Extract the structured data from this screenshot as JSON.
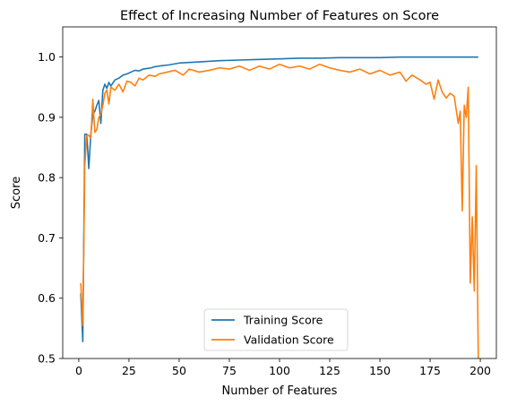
{
  "chart_data": {
    "type": "line",
    "title": "Effect of Increasing Number of Features on Score",
    "xlabel": "Number of Features",
    "ylabel": "Score",
    "xlim": [
      -8,
      208
    ],
    "ylim": [
      0.5,
      1.05
    ],
    "xticks": [
      0,
      25,
      50,
      75,
      100,
      125,
      150,
      175,
      200
    ],
    "yticks": [
      0.5,
      0.6,
      0.7,
      0.8,
      0.9,
      1.0
    ],
    "ytick_labels": [
      "0.5",
      "0.6",
      "0.7",
      "0.8",
      "0.9",
      "1.0"
    ],
    "grid": false,
    "legend_position": "bottom-center",
    "series": [
      {
        "name": "Training Score",
        "color": "#1f77b4",
        "points": [
          [
            1,
            0.608
          ],
          [
            2,
            0.528
          ],
          [
            3,
            0.872
          ],
          [
            4,
            0.872
          ],
          [
            5,
            0.815
          ],
          [
            6,
            0.872
          ],
          [
            7,
            0.905
          ],
          [
            8,
            0.91
          ],
          [
            9,
            0.92
          ],
          [
            10,
            0.928
          ],
          [
            11,
            0.89
          ],
          [
            12,
            0.945
          ],
          [
            13,
            0.955
          ],
          [
            14,
            0.948
          ],
          [
            15,
            0.958
          ],
          [
            16,
            0.952
          ],
          [
            18,
            0.962
          ],
          [
            20,
            0.965
          ],
          [
            22,
            0.97
          ],
          [
            24,
            0.972
          ],
          [
            26,
            0.975
          ],
          [
            28,
            0.978
          ],
          [
            30,
            0.977
          ],
          [
            32,
            0.98
          ],
          [
            34,
            0.981
          ],
          [
            36,
            0.982
          ],
          [
            38,
            0.984
          ],
          [
            40,
            0.985
          ],
          [
            45,
            0.987
          ],
          [
            50,
            0.99
          ],
          [
            55,
            0.991
          ],
          [
            60,
            0.992
          ],
          [
            70,
            0.994
          ],
          [
            80,
            0.995
          ],
          [
            90,
            0.996
          ],
          [
            100,
            0.997
          ],
          [
            110,
            0.998
          ],
          [
            120,
            0.998
          ],
          [
            130,
            0.999
          ],
          [
            140,
            0.999
          ],
          [
            150,
            0.999
          ],
          [
            160,
            1.0
          ],
          [
            170,
            1.0
          ],
          [
            180,
            1.0
          ],
          [
            190,
            1.0
          ],
          [
            199,
            1.0
          ]
        ]
      },
      {
        "name": "Validation Score",
        "color": "#ff7f0e",
        "points": [
          [
            1,
            0.625
          ],
          [
            2,
            0.555
          ],
          [
            3,
            0.82
          ],
          [
            4,
            0.87
          ],
          [
            5,
            0.87
          ],
          [
            6,
            0.865
          ],
          [
            7,
            0.93
          ],
          [
            8,
            0.875
          ],
          [
            9,
            0.88
          ],
          [
            10,
            0.9
          ],
          [
            11,
            0.905
          ],
          [
            12,
            0.92
          ],
          [
            13,
            0.94
          ],
          [
            14,
            0.945
          ],
          [
            15,
            0.922
          ],
          [
            16,
            0.95
          ],
          [
            18,
            0.945
          ],
          [
            20,
            0.955
          ],
          [
            22,
            0.942
          ],
          [
            24,
            0.96
          ],
          [
            26,
            0.958
          ],
          [
            28,
            0.952
          ],
          [
            30,
            0.965
          ],
          [
            32,
            0.962
          ],
          [
            35,
            0.97
          ],
          [
            38,
            0.968
          ],
          [
            40,
            0.972
          ],
          [
            44,
            0.975
          ],
          [
            48,
            0.978
          ],
          [
            52,
            0.97
          ],
          [
            55,
            0.98
          ],
          [
            60,
            0.975
          ],
          [
            65,
            0.978
          ],
          [
            70,
            0.982
          ],
          [
            75,
            0.98
          ],
          [
            80,
            0.985
          ],
          [
            85,
            0.978
          ],
          [
            90,
            0.985
          ],
          [
            95,
            0.98
          ],
          [
            100,
            0.988
          ],
          [
            105,
            0.982
          ],
          [
            110,
            0.985
          ],
          [
            115,
            0.98
          ],
          [
            120,
            0.988
          ],
          [
            125,
            0.982
          ],
          [
            130,
            0.978
          ],
          [
            135,
            0.975
          ],
          [
            140,
            0.98
          ],
          [
            145,
            0.972
          ],
          [
            150,
            0.978
          ],
          [
            155,
            0.97
          ],
          [
            160,
            0.975
          ],
          [
            163,
            0.96
          ],
          [
            166,
            0.97
          ],
          [
            170,
            0.962
          ],
          [
            173,
            0.955
          ],
          [
            175,
            0.958
          ],
          [
            177,
            0.93
          ],
          [
            179,
            0.962
          ],
          [
            181,
            0.942
          ],
          [
            183,
            0.932
          ],
          [
            185,
            0.94
          ],
          [
            187,
            0.935
          ],
          [
            189,
            0.89
          ],
          [
            190,
            0.91
          ],
          [
            191,
            0.745
          ],
          [
            192,
            0.92
          ],
          [
            193,
            0.9
          ],
          [
            194,
            0.95
          ],
          [
            195,
            0.625
          ],
          [
            196,
            0.735
          ],
          [
            197,
            0.612
          ],
          [
            198,
            0.82
          ],
          [
            199,
            0.5
          ]
        ]
      }
    ]
  }
}
